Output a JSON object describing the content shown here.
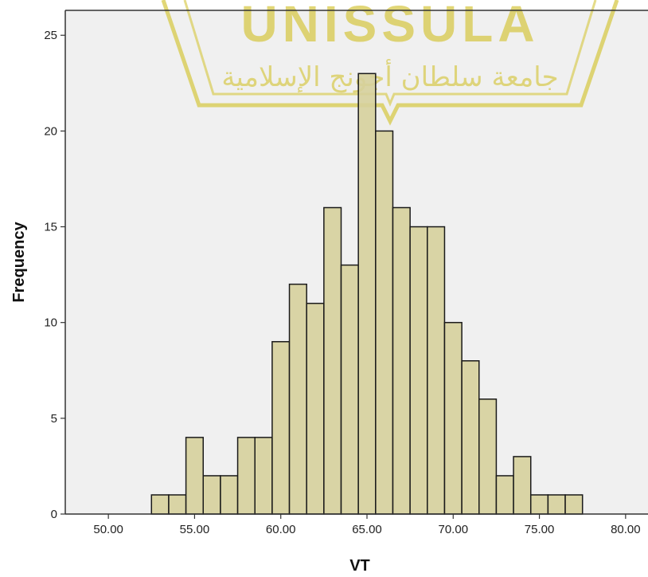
{
  "chart_data": {
    "type": "bar",
    "subtype": "histogram",
    "title": "",
    "xlabel": "VT",
    "ylabel": "Frequency",
    "bin_width": 1.0,
    "bins": [
      {
        "start": 52.5,
        "end": 53.5,
        "count": 1
      },
      {
        "start": 53.5,
        "end": 54.5,
        "count": 1
      },
      {
        "start": 54.5,
        "end": 55.5,
        "count": 4
      },
      {
        "start": 55.5,
        "end": 56.5,
        "count": 2
      },
      {
        "start": 56.5,
        "end": 57.5,
        "count": 2
      },
      {
        "start": 57.5,
        "end": 58.5,
        "count": 4
      },
      {
        "start": 58.5,
        "end": 59.5,
        "count": 4
      },
      {
        "start": 59.5,
        "end": 60.5,
        "count": 9
      },
      {
        "start": 60.5,
        "end": 61.5,
        "count": 12
      },
      {
        "start": 61.5,
        "end": 62.5,
        "count": 11
      },
      {
        "start": 62.5,
        "end": 63.5,
        "count": 16
      },
      {
        "start": 63.5,
        "end": 64.5,
        "count": 13
      },
      {
        "start": 64.5,
        "end": 65.5,
        "count": 23
      },
      {
        "start": 65.5,
        "end": 66.5,
        "count": 20
      },
      {
        "start": 66.5,
        "end": 67.5,
        "count": 16
      },
      {
        "start": 67.5,
        "end": 68.5,
        "count": 15
      },
      {
        "start": 68.5,
        "end": 69.5,
        "count": 15
      },
      {
        "start": 69.5,
        "end": 70.5,
        "count": 10
      },
      {
        "start": 70.5,
        "end": 71.5,
        "count": 8
      },
      {
        "start": 71.5,
        "end": 72.5,
        "count": 6
      },
      {
        "start": 72.5,
        "end": 73.5,
        "count": 2
      },
      {
        "start": 73.5,
        "end": 74.5,
        "count": 3
      },
      {
        "start": 74.5,
        "end": 75.5,
        "count": 1
      },
      {
        "start": 75.5,
        "end": 76.5,
        "count": 1
      },
      {
        "start": 76.5,
        "end": 77.5,
        "count": 1
      }
    ],
    "xlim": [
      47.5,
      81.3
    ],
    "ylim": [
      0,
      26.3
    ],
    "x_ticks": [
      50,
      55,
      60,
      65,
      70,
      75,
      80
    ],
    "x_tick_labels": [
      "50.00",
      "55.00",
      "60.00",
      "65.00",
      "70.00",
      "75.00",
      "80.00"
    ],
    "y_ticks": [
      0,
      5,
      10,
      15,
      20,
      25
    ],
    "y_tick_labels": [
      "0",
      "5",
      "10",
      "15",
      "20",
      "25"
    ],
    "grid": false,
    "legend": "none",
    "colors": {
      "bar_fill": "#d6d09c",
      "bar_stroke": "#1a1a1a",
      "plot_background": "#f0f0f0",
      "axis": "#333333",
      "watermark": "#d7c94a"
    }
  },
  "watermark": {
    "title": "UNISSULA",
    "subtitle": "جامعة سلطان أجونج الإسلامية"
  }
}
